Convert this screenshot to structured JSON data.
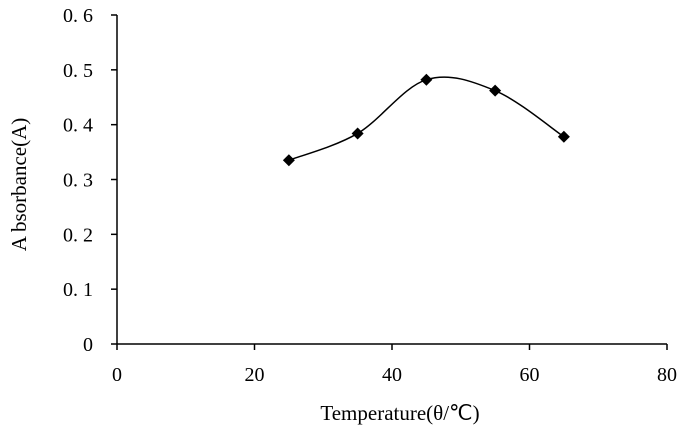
{
  "chart_data": {
    "type": "line",
    "title": "",
    "xlabel": "Temperature(θ/℃)",
    "ylabel": "A bsorbance(A)",
    "xlim": [
      0,
      80
    ],
    "ylim": [
      0,
      0.6
    ],
    "x_ticks": [
      0,
      20,
      40,
      60,
      80
    ],
    "x_tick_labels": [
      "0",
      "20",
      "40",
      "60",
      "80"
    ],
    "y_ticks": [
      0,
      0.1,
      0.2,
      0.3,
      0.4,
      0.5,
      0.6
    ],
    "y_tick_labels": [
      "0",
      "0. 1",
      "0. 2",
      "0. 3",
      "0. 4",
      "0. 5",
      "0. 6"
    ],
    "grid": false,
    "legend": "none",
    "line_color": "#000000",
    "marker": "diamond",
    "smooth": true,
    "series": [
      {
        "x": [
          25,
          35,
          45,
          55,
          65
        ],
        "y": [
          0.335,
          0.384,
          0.482,
          0.462,
          0.378
        ]
      }
    ]
  }
}
